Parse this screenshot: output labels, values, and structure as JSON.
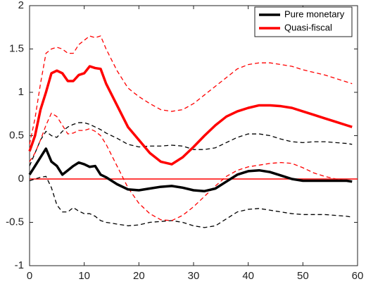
{
  "chart_data": {
    "type": "line",
    "x": [
      0,
      1,
      2,
      3,
      4,
      5,
      6,
      7,
      8,
      9,
      10,
      11,
      12,
      13,
      14,
      16,
      18,
      20,
      22,
      24,
      26,
      28,
      30,
      32,
      34,
      36,
      38,
      40,
      42,
      44,
      46,
      48,
      50,
      52,
      54,
      56,
      58,
      59
    ],
    "series": [
      {
        "name": "Pure monetary",
        "color": "#000000",
        "values": [
          0.05,
          0.15,
          0.25,
          0.35,
          0.2,
          0.15,
          0.05,
          0.1,
          0.15,
          0.19,
          0.17,
          0.14,
          0.15,
          0.05,
          0.02,
          -0.06,
          -0.12,
          -0.13,
          -0.11,
          -0.09,
          -0.08,
          -0.1,
          -0.13,
          -0.14,
          -0.11,
          -0.03,
          0.05,
          0.09,
          0.1,
          0.08,
          0.04,
          0,
          -0.02,
          -0.02,
          -0.02,
          -0.02,
          -0.02,
          -0.03
        ],
        "upper": [
          0.15,
          0.3,
          0.45,
          0.55,
          0.5,
          0.48,
          0.55,
          0.6,
          0.63,
          0.65,
          0.65,
          0.63,
          0.6,
          0.57,
          0.53,
          0.47,
          0.4,
          0.37,
          0.38,
          0.38,
          0.39,
          0.38,
          0.34,
          0.34,
          0.36,
          0.42,
          0.48,
          0.52,
          0.52,
          0.5,
          0.46,
          0.43,
          0.42,
          0.43,
          0.43,
          0.42,
          0.41,
          0.4
        ],
        "lower": [
          -0.02,
          0,
          0.02,
          0.03,
          -0.1,
          -0.3,
          -0.38,
          -0.38,
          -0.33,
          -0.37,
          -0.4,
          -0.4,
          -0.43,
          -0.48,
          -0.5,
          -0.52,
          -0.54,
          -0.53,
          -0.5,
          -0.49,
          -0.48,
          -0.5,
          -0.54,
          -0.56,
          -0.54,
          -0.46,
          -0.38,
          -0.35,
          -0.34,
          -0.36,
          -0.38,
          -0.4,
          -0.41,
          -0.41,
          -0.41,
          -0.42,
          -0.43,
          -0.44
        ]
      },
      {
        "name": "Quasi-fiscal",
        "color": "#ff0000",
        "values": [
          0.32,
          0.5,
          0.8,
          1.0,
          1.22,
          1.25,
          1.22,
          1.13,
          1.13,
          1.2,
          1.22,
          1.3,
          1.28,
          1.27,
          1.1,
          0.85,
          0.6,
          0.45,
          0.3,
          0.2,
          0.17,
          0.25,
          0.37,
          0.5,
          0.62,
          0.72,
          0.78,
          0.82,
          0.85,
          0.85,
          0.84,
          0.82,
          0.78,
          0.74,
          0.7,
          0.66,
          0.62,
          0.6
        ],
        "upper": [
          0.4,
          0.7,
          1.1,
          1.45,
          1.5,
          1.52,
          1.5,
          1.45,
          1.45,
          1.55,
          1.6,
          1.65,
          1.63,
          1.65,
          1.5,
          1.25,
          1.05,
          0.95,
          0.87,
          0.8,
          0.78,
          0.8,
          0.87,
          0.97,
          1.07,
          1.17,
          1.27,
          1.32,
          1.34,
          1.34,
          1.32,
          1.3,
          1.26,
          1.23,
          1.2,
          1.16,
          1.12,
          1.1
        ],
        "lower": [
          0.2,
          0.3,
          0.45,
          0.62,
          0.76,
          0.72,
          0.62,
          0.52,
          0.53,
          0.56,
          0.56,
          0.58,
          0.55,
          0.5,
          0.4,
          0.15,
          -0.1,
          -0.28,
          -0.4,
          -0.47,
          -0.48,
          -0.42,
          -0.32,
          -0.2,
          -0.08,
          0.03,
          0.1,
          0.14,
          0.16,
          0.18,
          0.19,
          0.18,
          0.13,
          0.07,
          0.03,
          0,
          -0.02,
          -0.03
        ]
      }
    ],
    "band_style": "dashed",
    "reference_line": {
      "value": 0,
      "color": "#ff0000"
    },
    "xlim": [
      0,
      60
    ],
    "xticks": [
      0,
      10,
      20,
      30,
      40,
      50,
      60
    ],
    "ylim": [
      -1,
      2
    ],
    "yticks": [
      -1,
      -0.5,
      0,
      0.5,
      1,
      1.5,
      2
    ],
    "legend": "top-right",
    "grid": false
  }
}
